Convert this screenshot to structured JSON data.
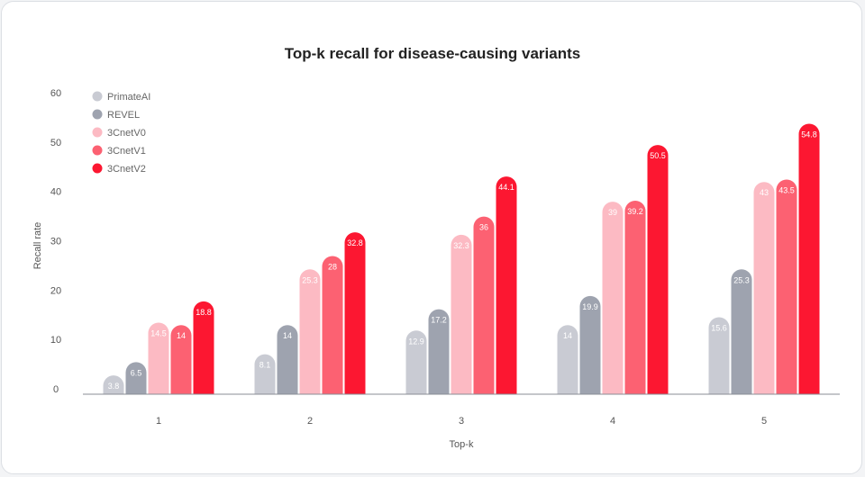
{
  "chart_data": {
    "type": "bar",
    "title": "Top-k recall for disease-causing variants",
    "xlabel": "Top-k",
    "ylabel": "Recall rate",
    "categories": [
      "1",
      "2",
      "3",
      "4",
      "5"
    ],
    "ylim": [
      0,
      60
    ],
    "yticks": [
      "0",
      "10",
      "20",
      "30",
      "40",
      "50",
      "60"
    ],
    "legend_position": "top-left",
    "series": [
      {
        "name": "PrimateAI",
        "color": "#c9cbd3",
        "values": [
          3.8,
          8.1,
          12.9,
          14,
          15.6
        ],
        "labels": [
          "3.8",
          "8.1",
          "12.9",
          "14",
          "15.6"
        ]
      },
      {
        "name": "REVEL",
        "color": "#9ea3af",
        "values": [
          6.5,
          14,
          17.2,
          19.9,
          25.3
        ],
        "labels": [
          "6.5",
          "14",
          "17.2",
          "19.9",
          "25.3"
        ]
      },
      {
        "name": "3CnetV0",
        "color": "#fcbac3",
        "values": [
          14.5,
          25.3,
          32.3,
          39,
          43
        ],
        "labels": [
          "14.5",
          "25.3",
          "32.3",
          "39",
          "43"
        ]
      },
      {
        "name": "3CnetV1",
        "color": "#fc6172",
        "values": [
          14,
          28,
          36,
          39.2,
          43.5
        ],
        "labels": [
          "14",
          "28",
          "36",
          "39.2",
          "43.5"
        ]
      },
      {
        "name": "3CnetV2",
        "color": "#fc1731",
        "values": [
          18.8,
          32.8,
          44.1,
          50.5,
          54.8
        ],
        "labels": [
          "18.8",
          "32.8",
          "44.1",
          "50.5",
          "54.8"
        ]
      }
    ]
  }
}
